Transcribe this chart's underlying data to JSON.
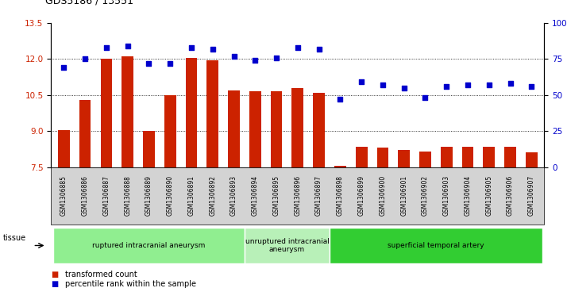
{
  "title": "GDS5186 / 13551",
  "samples": [
    "GSM1306885",
    "GSM1306886",
    "GSM1306887",
    "GSM1306888",
    "GSM1306889",
    "GSM1306890",
    "GSM1306891",
    "GSM1306892",
    "GSM1306893",
    "GSM1306894",
    "GSM1306895",
    "GSM1306896",
    "GSM1306897",
    "GSM1306898",
    "GSM1306899",
    "GSM1306900",
    "GSM1306901",
    "GSM1306902",
    "GSM1306903",
    "GSM1306904",
    "GSM1306905",
    "GSM1306906",
    "GSM1306907"
  ],
  "transformed_count": [
    9.05,
    10.3,
    12.0,
    12.1,
    9.0,
    10.5,
    12.05,
    11.95,
    10.7,
    10.65,
    10.65,
    10.8,
    10.6,
    7.55,
    8.35,
    8.3,
    8.2,
    8.15,
    8.35,
    8.35,
    8.35,
    8.35,
    8.1
  ],
  "percentile_rank": [
    69,
    75,
    83,
    84,
    72,
    72,
    83,
    82,
    77,
    74,
    76,
    83,
    82,
    47,
    59,
    57,
    55,
    48,
    56,
    57,
    57,
    58,
    56
  ],
  "ylim_left": [
    7.5,
    13.5
  ],
  "ylim_right": [
    0,
    100
  ],
  "yticks_left": [
    7.5,
    9.0,
    10.5,
    12.0,
    13.5
  ],
  "yticks_right": [
    0,
    25,
    50,
    75,
    100
  ],
  "bar_color": "#cc2200",
  "dot_color": "#0000cc",
  "bg_color": "#d3d3d3",
  "plot_bg": "#ffffff",
  "groups": [
    {
      "label": "ruptured intracranial aneurysm",
      "start": 0,
      "end": 9,
      "color": "#90ee90"
    },
    {
      "label": "unruptured intracranial\naneurysm",
      "start": 9,
      "end": 13,
      "color": "#b8f0b8"
    },
    {
      "label": "superficial temporal artery",
      "start": 13,
      "end": 23,
      "color": "#32cd32"
    }
  ],
  "legend_bar_label": "transformed count",
  "legend_dot_label": "percentile rank within the sample",
  "tissue_label": "tissue"
}
